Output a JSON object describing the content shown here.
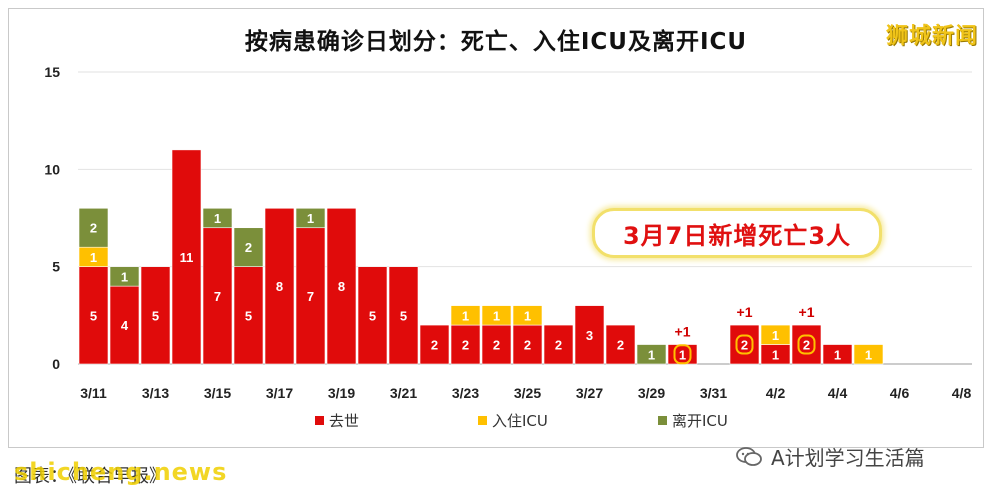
{
  "brand": "狮城新闻",
  "callout": "3月7日新增死亡3人",
  "source": "图表：《联合早报》",
  "watermark": "shicheng.news",
  "wechat": "A计划学习生活篇",
  "colors": {
    "death": "#e00b0b",
    "icu_in": "#ffc000",
    "icu_out": "#7b8f3a"
  },
  "chart_data": {
    "type": "bar",
    "stacked": true,
    "title": "按病患确诊日划分：死亡、入住ICU及离开ICU",
    "ylim": [
      0,
      15
    ],
    "yticks": [
      0,
      5,
      10,
      15
    ],
    "xtick_labels": [
      "3/11",
      "3/13",
      "3/15",
      "3/17",
      "3/19",
      "3/21",
      "3/23",
      "3/25",
      "3/27",
      "3/29",
      "3/31",
      "4/2",
      "4/4",
      "4/6",
      "4/8"
    ],
    "categories": [
      "3/11",
      "3/12",
      "3/13",
      "3/14",
      "3/15",
      "3/16",
      "3/17",
      "3/18",
      "3/19",
      "3/20",
      "3/21",
      "3/22",
      "3/23",
      "3/24",
      "3/25",
      "3/26",
      "3/27",
      "3/28",
      "3/29",
      "3/30",
      "3/31",
      "4/1",
      "4/2",
      "4/3",
      "4/4",
      "4/5",
      "4/6",
      "4/7",
      "4/8"
    ],
    "series": [
      {
        "name": "去世",
        "color": "#e00b0b",
        "values": [
          5,
          4,
          5,
          11,
          7,
          5,
          8,
          7,
          8,
          5,
          5,
          2,
          2,
          2,
          2,
          2,
          3,
          2,
          0,
          1,
          0,
          2,
          1,
          2,
          1,
          0,
          0,
          0,
          0
        ]
      },
      {
        "name": "入住ICU",
        "color": "#ffc000",
        "values": [
          1,
          0,
          0,
          0,
          0,
          0,
          0,
          0,
          0,
          0,
          0,
          0,
          1,
          1,
          1,
          0,
          0,
          0,
          0,
          0,
          0,
          0,
          1,
          0,
          0,
          1,
          0,
          0,
          0
        ]
      },
      {
        "name": "离开ICU",
        "color": "#7b8f3a",
        "values": [
          2,
          1,
          0,
          0,
          1,
          2,
          0,
          1,
          0,
          0,
          0,
          0,
          0,
          0,
          0,
          0,
          0,
          0,
          1,
          0,
          0,
          0,
          0,
          0,
          0,
          0,
          0,
          0,
          0
        ]
      }
    ],
    "annotations": [
      {
        "category": "3/30",
        "text": "+1",
        "circled_value": "1"
      },
      {
        "category": "4/1",
        "text": "+1",
        "circled_value": "2"
      },
      {
        "category": "4/3",
        "text": "+1",
        "circled_value": "2"
      }
    ]
  }
}
